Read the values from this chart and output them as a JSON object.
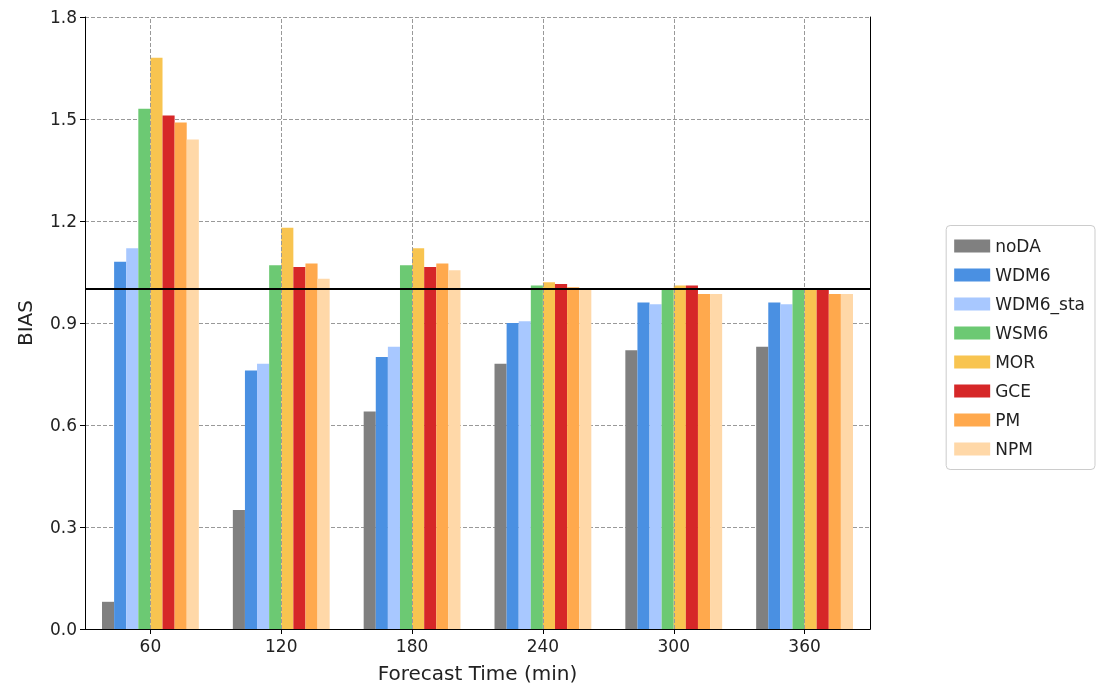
{
  "chart_data": {
    "type": "bar",
    "xlabel": "Forecast Time (min)",
    "ylabel": "BIAS",
    "categories": [
      "60",
      "120",
      "180",
      "240",
      "300",
      "360"
    ],
    "series": [
      {
        "name": "noDA",
        "color": "#808080",
        "values": [
          0.08,
          0.35,
          0.64,
          0.78,
          0.82,
          0.83
        ]
      },
      {
        "name": "WDM6",
        "color": "#4a90e2",
        "values": [
          1.08,
          0.76,
          0.8,
          0.9,
          0.96,
          0.96
        ]
      },
      {
        "name": "WDM6_sta",
        "color": "#a8c8ff",
        "values": [
          1.12,
          0.78,
          0.83,
          0.905,
          0.955,
          0.955
        ]
      },
      {
        "name": "WSM6",
        "color": "#6cc973",
        "values": [
          1.53,
          1.07,
          1.07,
          1.01,
          1.0,
          1.0
        ]
      },
      {
        "name": "MOR",
        "color": "#f8c450",
        "values": [
          1.68,
          1.18,
          1.12,
          1.02,
          1.01,
          1.0
        ]
      },
      {
        "name": "GCE",
        "color": "#d62728",
        "values": [
          1.51,
          1.065,
          1.065,
          1.015,
          1.01,
          1.0
        ]
      },
      {
        "name": "PM",
        "color": "#ffa94d",
        "values": [
          1.49,
          1.075,
          1.075,
          1.005,
          0.985,
          0.985
        ]
      },
      {
        "name": "NPM",
        "color": "#ffd8a8",
        "values": [
          1.44,
          1.03,
          1.055,
          1.0,
          0.985,
          0.985
        ]
      }
    ],
    "ylim": [
      0,
      1.8
    ],
    "yticks": [
      {
        "value": 0,
        "label": "0.0"
      },
      0.3,
      0.6,
      0.9,
      1.2,
      1.5,
      1.8
    ],
    "ref_lines": [
      {
        "axis": "y",
        "value": 1.0,
        "color": "#000000",
        "line_style": "solid"
      }
    ],
    "grid": true,
    "legend": "right"
  }
}
